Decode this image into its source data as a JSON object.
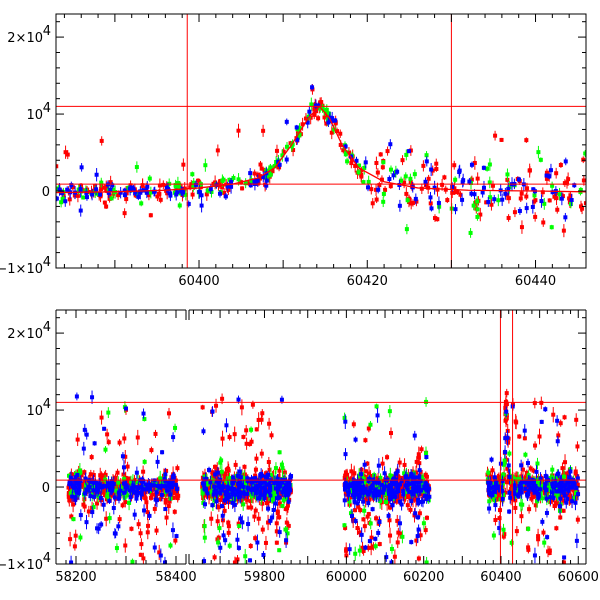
{
  "chart_data": [
    {
      "type": "scatter",
      "panel": "top",
      "title": "",
      "xlabel": "",
      "ylabel": "",
      "xlim": [
        60383,
        60446
      ],
      "ylim": [
        -10000,
        23000
      ],
      "xticks": [
        60400,
        60420,
        60440
      ],
      "xtick_labels": [
        "60400",
        "60420",
        "60440"
      ],
      "yticks": [
        -10000,
        0,
        10000,
        20000
      ],
      "ytick_labels": [
        {
          "m": "−1×10",
          "e": "4"
        },
        {
          "m": "0",
          "e": ""
        },
        {
          "m": "10",
          "e": "4"
        },
        {
          "m": "2×10",
          "e": "4"
        }
      ],
      "hlines": [
        900,
        11000
      ],
      "vlines": [
        60398.6,
        60430.0
      ],
      "model_curve": {
        "color": "#ff0000",
        "x": [
          60383,
          60390,
          60396,
          60400,
          60404,
          60407,
          60409,
          60411,
          60413,
          60414.3,
          60415.5,
          60417,
          60419,
          60422,
          60426,
          60432,
          60440,
          60446
        ],
        "y": [
          -200,
          -100,
          100,
          400,
          900,
          1700,
          3000,
          6000,
          9500,
          11000,
          9500,
          6000,
          3000,
          1200,
          400,
          100,
          0,
          -100
        ]
      },
      "series": [
        {
          "name": "",
          "color": "#ff0000",
          "n": 260,
          "seed": 11,
          "weight": 1.0
        },
        {
          "name": "",
          "color": "#00ff00",
          "n": 130,
          "seed": 23,
          "weight": 1.0
        },
        {
          "name": "",
          "color": "#0000ff",
          "n": 150,
          "seed": 37,
          "weight": 1.0
        }
      ]
    },
    {
      "type": "scatter",
      "panel": "bottom",
      "title": "",
      "xlabel": "",
      "ylabel": "",
      "xlim": [
        58160,
        60620
      ],
      "ylim": [
        -10000,
        23000
      ],
      "broken_axis": true,
      "xticks": [
        58200,
        58300,
        58400,
        59800,
        60000,
        60200,
        60400,
        60600
      ],
      "xtick_labels": [
        "58200",
        "",
        "58400",
        "59800",
        "60000",
        "60200",
        "60400",
        "60600"
      ],
      "yticks": [
        -10000,
        0,
        10000,
        20000
      ],
      "ytick_labels": [
        {
          "m": "−1×10",
          "e": "4"
        },
        {
          "m": "0",
          "e": ""
        },
        {
          "m": "10",
          "e": "4"
        },
        {
          "m": "2×10",
          "e": "4"
        }
      ],
      "hlines": [
        900,
        11000
      ],
      "vlines": [
        60398.6,
        60430.0
      ],
      "segments": [
        {
          "start": 58160,
          "end": 58420,
          "data_start": 58190,
          "data_end": 58400
        },
        {
          "start": 59660,
          "end": 59860,
          "data_start": 59650,
          "data_end": 59860
        },
        {
          "start": 59860,
          "end": 60620,
          "data_start": 59990,
          "data_end": 60220
        },
        {
          "start": 60300,
          "end": 60620,
          "data_start": 60360,
          "data_end": 60600
        }
      ],
      "series": [
        {
          "name": "",
          "color": "#ff0000",
          "n": 1400,
          "seed": 51
        },
        {
          "name": "",
          "color": "#00ff00",
          "n": 380,
          "seed": 63
        },
        {
          "name": "",
          "color": "#0000ff",
          "n": 700,
          "seed": 77
        }
      ]
    }
  ]
}
